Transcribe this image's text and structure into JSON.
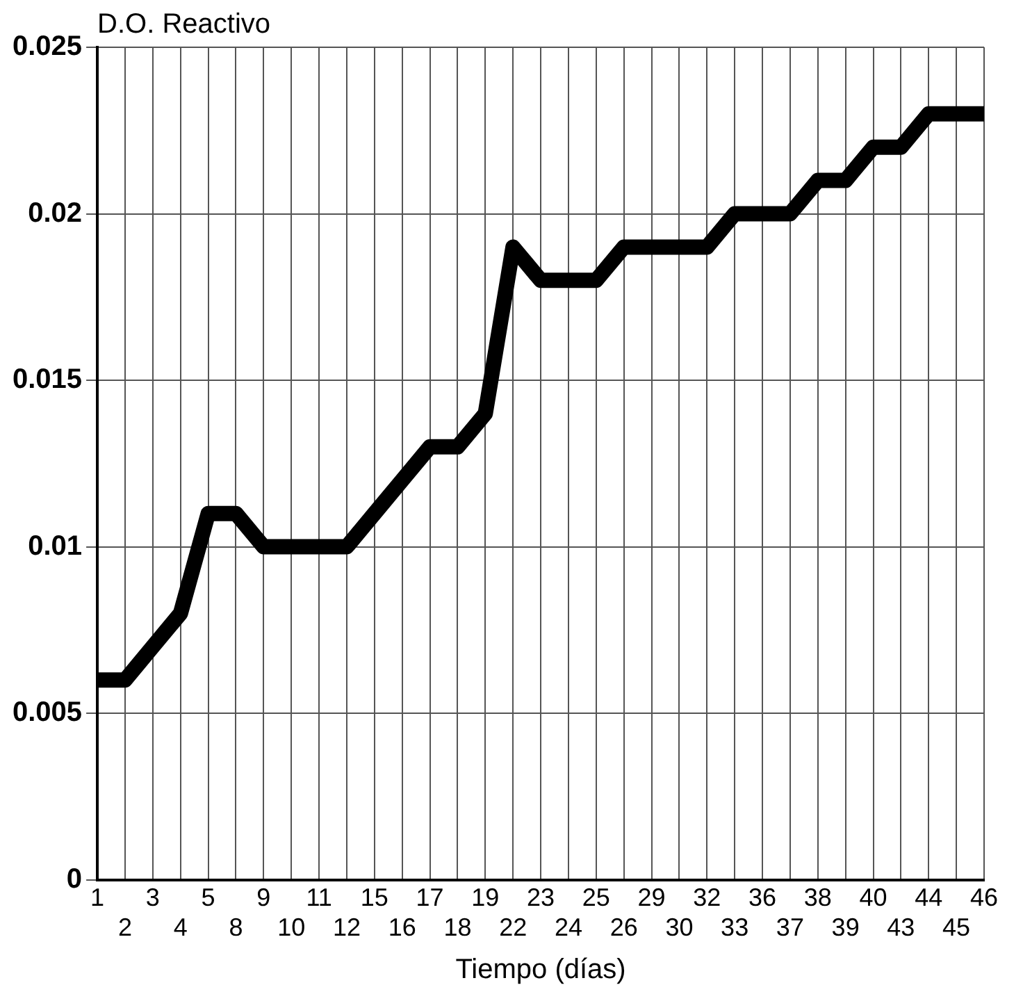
{
  "chart_data": {
    "type": "line",
    "ylabel": "D.O. Reactivo",
    "xlabel": "Tiempo (días)",
    "categories": [
      "1",
      "2",
      "3",
      "4",
      "5",
      "8",
      "9",
      "10",
      "11",
      "12",
      "15",
      "16",
      "17",
      "18",
      "19",
      "22",
      "23",
      "24",
      "25",
      "26",
      "29",
      "30",
      "32",
      "33",
      "36",
      "37",
      "38",
      "39",
      "40",
      "43",
      "44",
      "45",
      "46"
    ],
    "series": [
      {
        "color": "#000000",
        "values": [
          0.006,
          0.006,
          0.007,
          0.008,
          0.011,
          0.011,
          0.01,
          0.01,
          0.01,
          0.01,
          0.011,
          0.012,
          0.013,
          0.013,
          0.014,
          0.019,
          0.018,
          0.018,
          0.018,
          0.019,
          0.019,
          0.019,
          0.019,
          0.02,
          0.02,
          0.02,
          0.021,
          0.021,
          0.022,
          0.022,
          0.023,
          0.023,
          0.023
        ]
      }
    ],
    "ylim": [
      0,
      0.025
    ],
    "yticks": [
      0,
      0.005,
      0.01,
      0.015,
      0.02,
      0.025
    ],
    "grid": true,
    "legend": false,
    "marker": "none",
    "line_style": "solid"
  }
}
